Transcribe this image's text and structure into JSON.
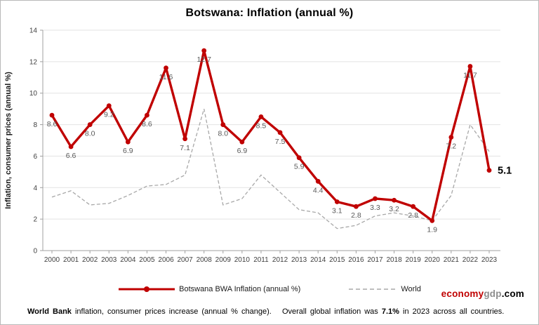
{
  "title": "Botswana: Inflation (annual %)",
  "chart_data": {
    "type": "line",
    "x": [
      2000,
      2001,
      2002,
      2003,
      2004,
      2005,
      2006,
      2007,
      2008,
      2009,
      2010,
      2011,
      2012,
      2013,
      2014,
      2015,
      2016,
      2017,
      2018,
      2019,
      2020,
      2021,
      2022,
      2023
    ],
    "series": [
      {
        "name": "Botswana BWA Inflation (annual %)",
        "color": "#c00000",
        "style": "solid",
        "values": [
          8.6,
          6.6,
          8.0,
          9.2,
          6.9,
          8.6,
          11.6,
          7.1,
          12.7,
          8.0,
          6.9,
          8.5,
          7.5,
          5.9,
          4.4,
          3.1,
          2.8,
          3.3,
          3.2,
          2.8,
          1.9,
          7.2,
          11.7,
          5.1
        ],
        "labels": [
          "8.6",
          "6.6",
          "8.0",
          "9.2",
          "6.9",
          "8.6",
          "11.6",
          "7.1",
          "12.7",
          "8.0",
          "6.9",
          "8.5",
          "7.5",
          "5.9",
          "4.4",
          "3.1",
          "2.8",
          "3.3",
          "3.2",
          "2.8",
          "1.9",
          "7.2",
          "11.7",
          "5.1"
        ]
      },
      {
        "name": "World",
        "color": "#a8a8a8",
        "style": "dashed",
        "values": [
          3.4,
          3.8,
          2.9,
          3.0,
          3.5,
          4.1,
          4.2,
          4.8,
          9.0,
          2.9,
          3.3,
          4.8,
          3.7,
          2.6,
          2.4,
          1.4,
          1.6,
          2.2,
          2.4,
          2.2,
          1.9,
          3.5,
          8.0,
          6.3
        ]
      }
    ],
    "title": "Botswana: Inflation (annual %)",
    "xlabel": "",
    "ylabel": "Inflation, consumer prices (annual %)",
    "ylim": [
      0,
      14
    ],
    "ytick_step": 2,
    "grid": true,
    "legend_position": "bottom",
    "highlighted_last_value": "5.1"
  },
  "legend": {
    "botswana_label": "Botswana BWA Inflation (annual %)",
    "world_label": "World"
  },
  "watermark": {
    "part1": "economy",
    "part2": "gdp",
    "part3": ".com"
  },
  "footer": {
    "bold1": "World Bank",
    "text1": " inflation, consumer prices increase (annual % change).   Overall global inflation was ",
    "bold2": "7.1%",
    "text2": " in 2023 across all countries."
  },
  "colors": {
    "botswana_line": "#c00000",
    "world_line": "#a8a8a8",
    "gridline": "#e3e3e3",
    "axis": "#a0a0a0",
    "data_label": "#595959",
    "axis_text": "#404040"
  }
}
